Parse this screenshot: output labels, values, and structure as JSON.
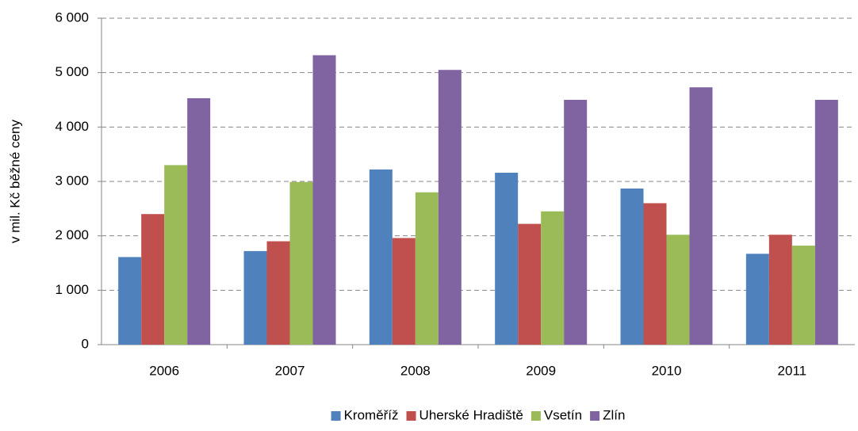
{
  "chart_data": {
    "type": "bar",
    "y_label": "v mil. Kč běžné ceny",
    "categories": [
      "2006",
      "2007",
      "2008",
      "2009",
      "2010",
      "2011"
    ],
    "series": [
      {
        "name": "Kroměříž",
        "color": "#4f81bd",
        "values": [
          1610,
          1720,
          3220,
          3160,
          2870,
          1670
        ]
      },
      {
        "name": "Uherské Hradiště",
        "color": "#c0504d",
        "values": [
          2400,
          1900,
          1960,
          2220,
          2600,
          2020
        ]
      },
      {
        "name": "Vsetín",
        "color": "#9bbb59",
        "values": [
          3300,
          2990,
          2800,
          2450,
          2020,
          1820
        ]
      },
      {
        "name": "Zlín",
        "color": "#8064a2",
        "values": [
          4530,
          5320,
          5050,
          4500,
          4730,
          4500
        ]
      }
    ],
    "ylim": [
      0,
      6000
    ],
    "yticks": [
      0,
      {
        "value": 1000,
        "label": "1 000"
      },
      {
        "value": 2000,
        "label": "2 000"
      },
      {
        "value": 3000,
        "label": "3 000"
      },
      {
        "value": 4000,
        "label": "4 000"
      },
      {
        "value": 5000,
        "label": "5 000"
      },
      {
        "value": 6000,
        "label": "6 000"
      }
    ],
    "grid": true,
    "legend": "bottom"
  }
}
